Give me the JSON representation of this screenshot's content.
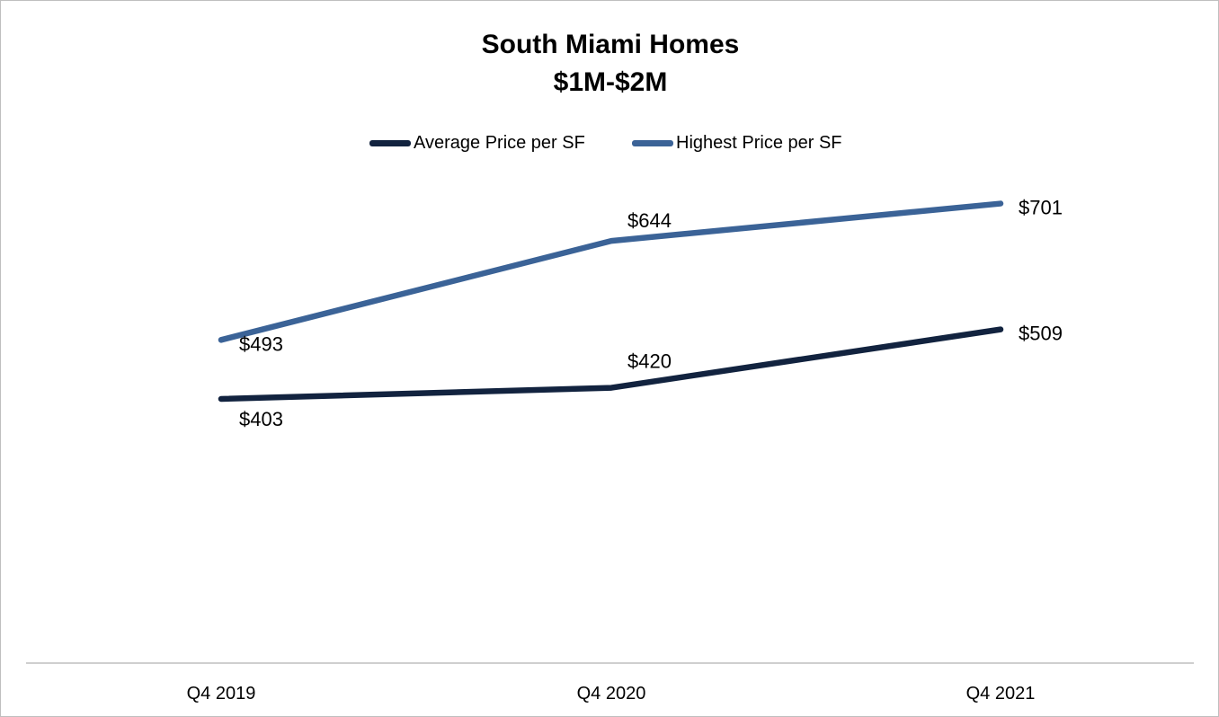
{
  "chart_data": {
    "type": "line",
    "title": [
      "South Miami Homes",
      "$1M-$2M"
    ],
    "categories": [
      "Q4 2019",
      "Q4 2020",
      "Q4 2021"
    ],
    "series": [
      {
        "name": "Average Price per SF",
        "values": [
          403,
          420,
          509
        ],
        "labels": [
          "$403",
          "$420",
          "$509"
        ],
        "color": "#12233f"
      },
      {
        "name": "Highest Price per SF",
        "values": [
          493,
          644,
          701
        ],
        "labels": [
          "$493",
          "$644",
          "$701"
        ],
        "color": "#3b6397"
      }
    ],
    "xlabel": "",
    "ylabel": "",
    "ylim": [
      0,
      1000
    ],
    "grid": false,
    "y_axis_visible": false,
    "legend": "top"
  }
}
